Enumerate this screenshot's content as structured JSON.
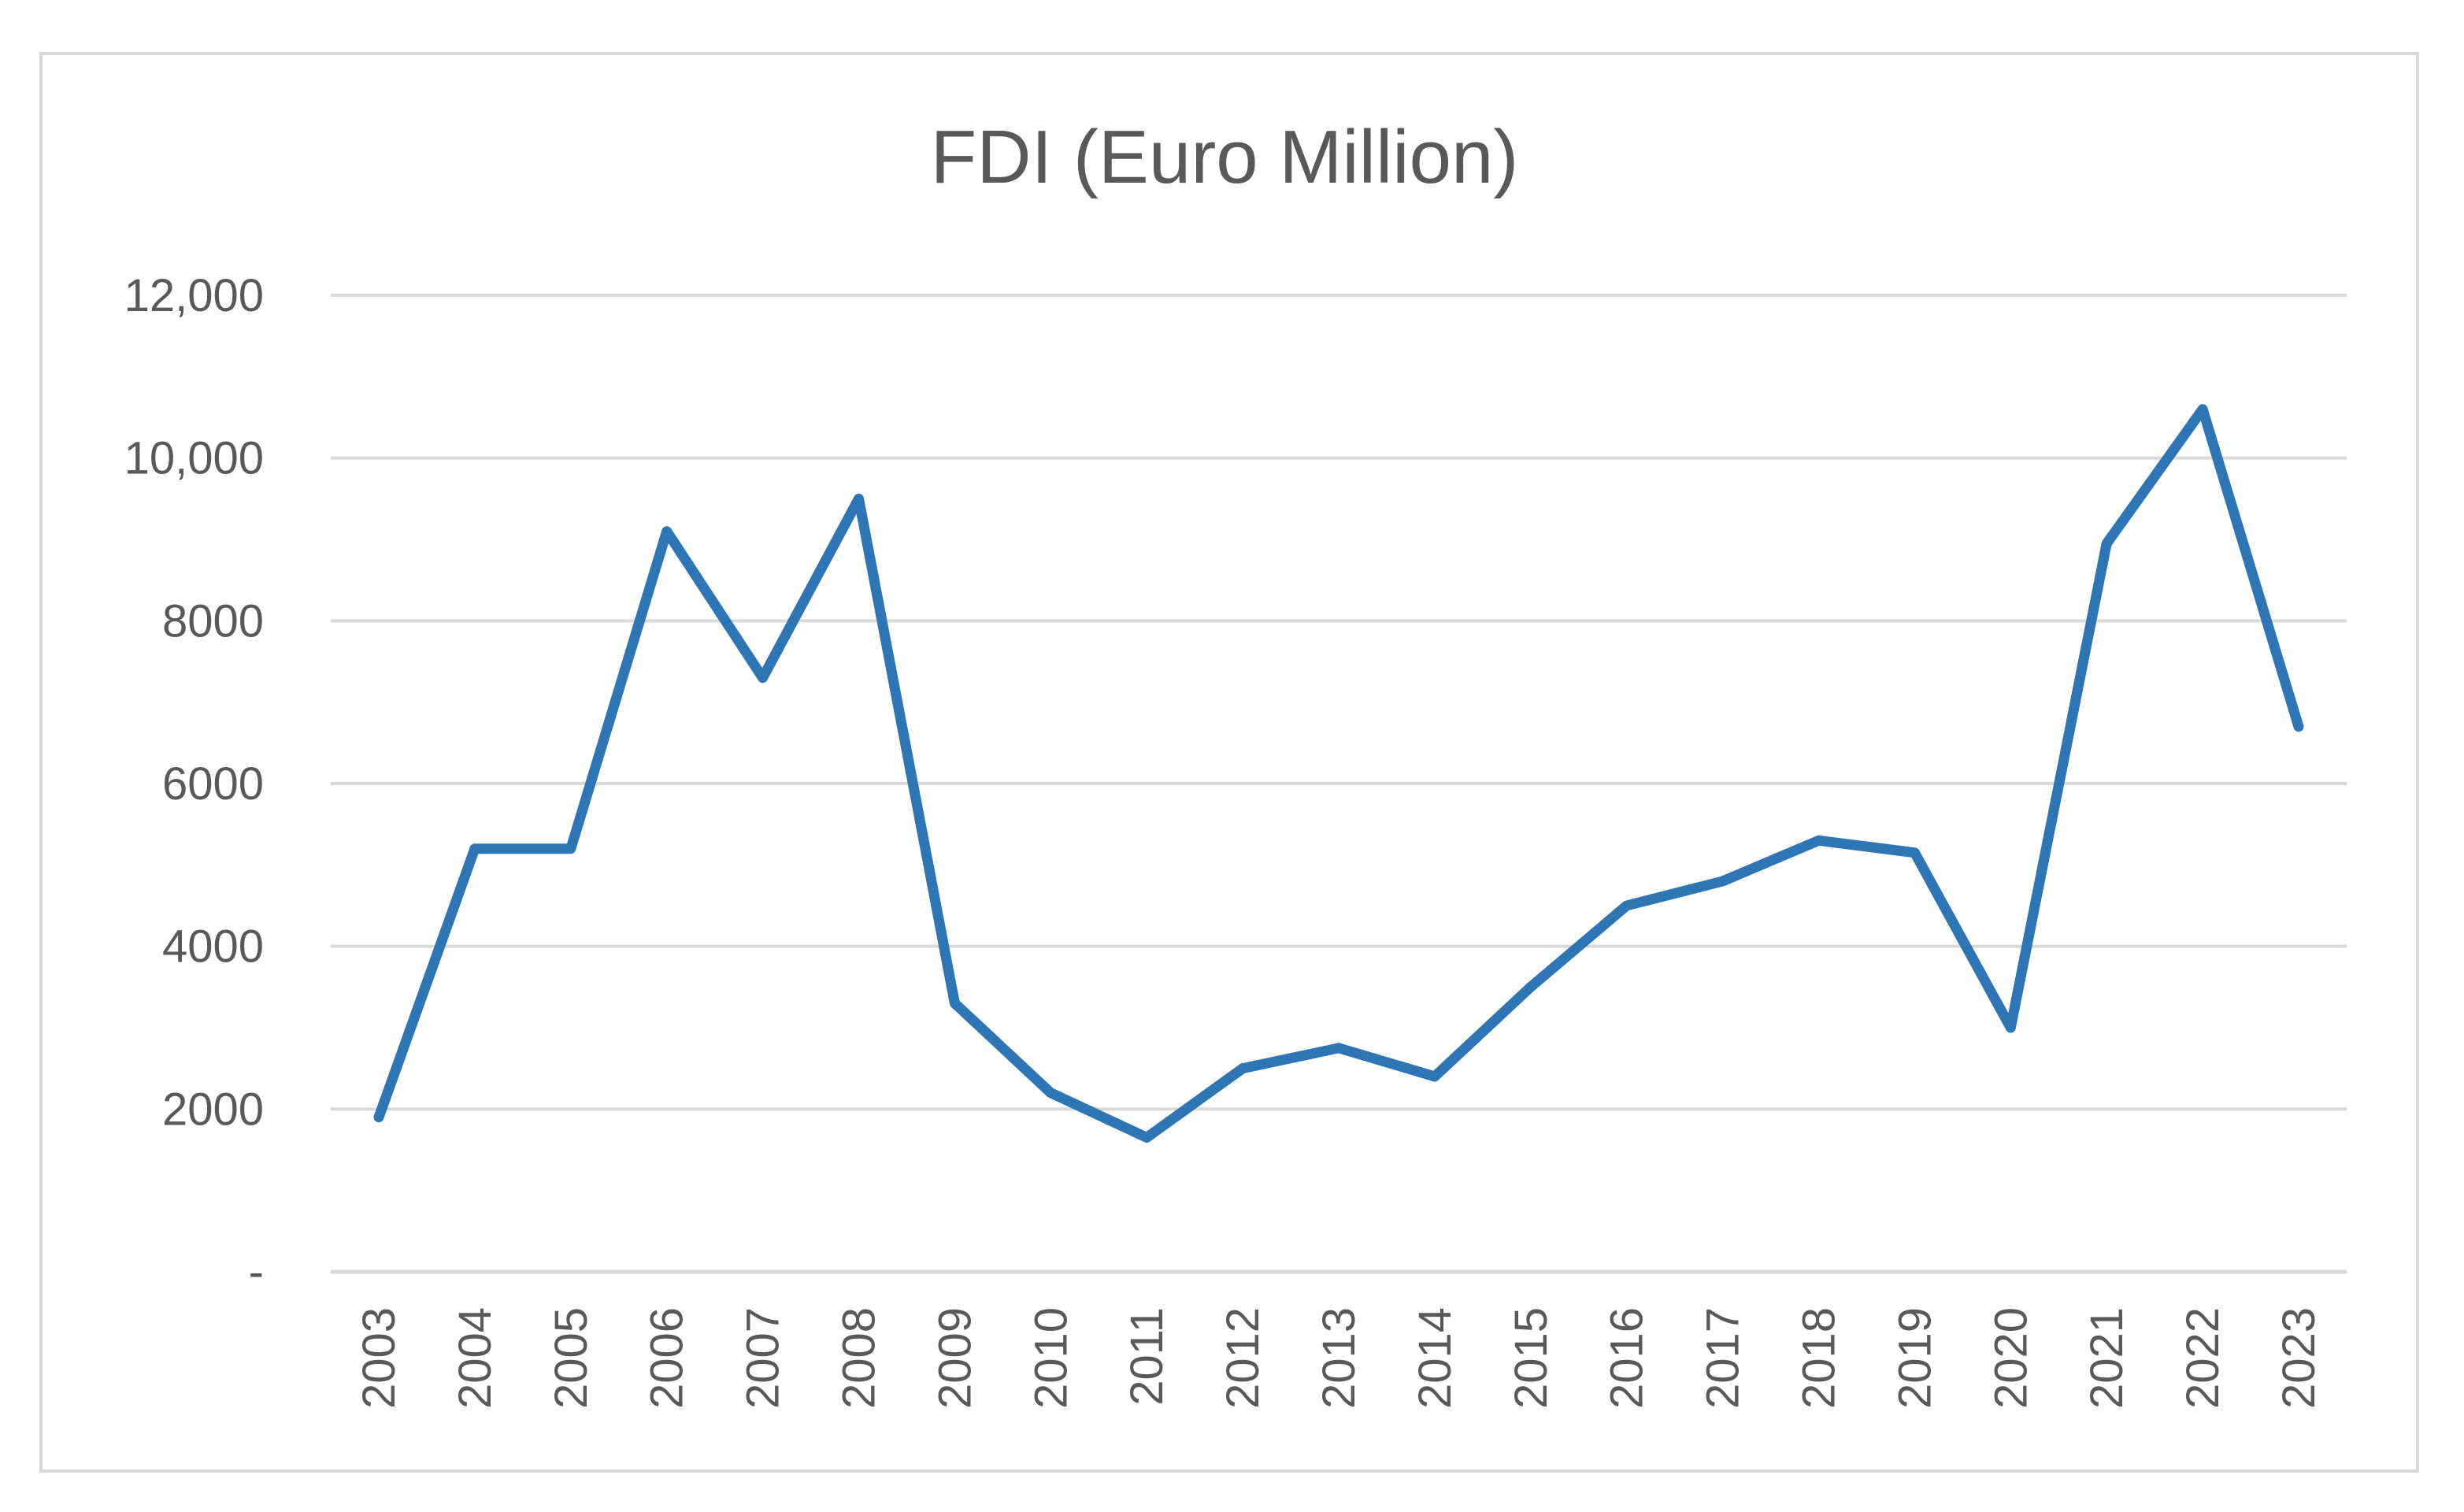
{
  "chart_data": {
    "type": "line",
    "title": "FDI (Euro Million)",
    "xlabel": "",
    "ylabel": "",
    "categories": [
      "2003",
      "2004",
      "2005",
      "2006",
      "2007",
      "2008",
      "2009",
      "2010",
      "2011",
      "2012",
      "2013",
      "2014",
      "2015",
      "2016",
      "2017",
      "2018",
      "2019",
      "2020",
      "2021",
      "2022",
      "2023"
    ],
    "series": [
      {
        "values": [
          1900,
          5200,
          5200,
          9100,
          7300,
          9500,
          3300,
          2200,
          1650,
          2500,
          2750,
          2400,
          3500,
          4500,
          4800,
          5300,
          5150,
          3000,
          8950,
          10600,
          6700
        ]
      }
    ],
    "ylim": [
      0,
      12000
    ],
    "yticks": [
      0,
      2000,
      4000,
      6000,
      8000,
      10000,
      12000
    ],
    "ytick_labels": [
      "-",
      "2000",
      "4000",
      "6000",
      "8000",
      "10,000",
      "12,000"
    ],
    "grid": true,
    "legend": "none",
    "colors": {
      "line": "#2e75b6",
      "grid": "#d9d9d9",
      "text": "#595959"
    }
  }
}
